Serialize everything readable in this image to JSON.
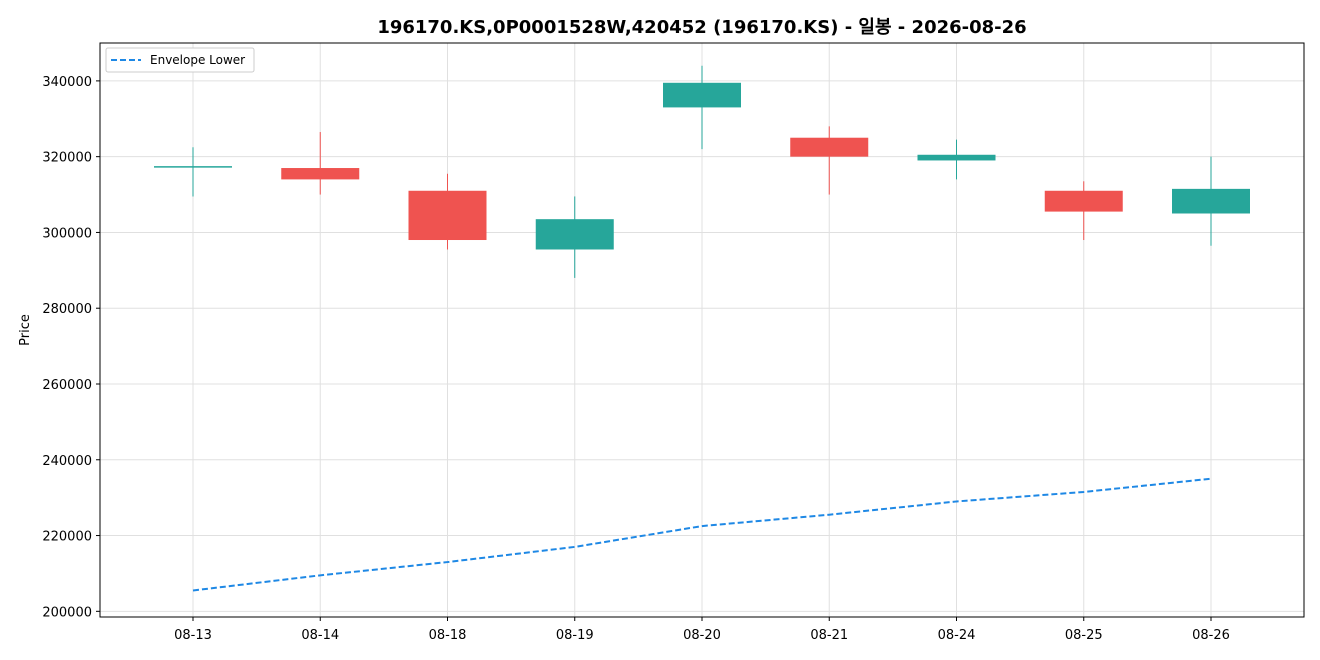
{
  "chart_data": {
    "type": "candlestick",
    "title": "196170.KS,0P0001528W,420452 (196170.KS) - 일봉 - 2026-08-26",
    "xlabel": "",
    "ylabel": "Price",
    "ylim": [
      198500,
      350000
    ],
    "yticks": [
      200000,
      220000,
      240000,
      260000,
      280000,
      300000,
      320000,
      340000
    ],
    "grid": true,
    "legend_position": "top-left",
    "categories": [
      "08-13",
      "08-14",
      "08-18",
      "08-19",
      "08-20",
      "08-21",
      "08-24",
      "08-25",
      "08-26"
    ],
    "ohlc": [
      {
        "open": 317500,
        "high": 322500,
        "low": 309500,
        "close": 317500
      },
      {
        "open": 317000,
        "high": 326500,
        "low": 310000,
        "close": 314000
      },
      {
        "open": 311000,
        "high": 315500,
        "low": 295500,
        "close": 298000
      },
      {
        "open": 295500,
        "high": 309500,
        "low": 288000,
        "close": 303500
      },
      {
        "open": 333000,
        "high": 344000,
        "low": 322000,
        "close": 339500
      },
      {
        "open": 325000,
        "high": 328000,
        "low": 310000,
        "close": 320000
      },
      {
        "open": 319000,
        "high": 324500,
        "low": 314000,
        "close": 320500
      },
      {
        "open": 311000,
        "high": 313500,
        "low": 298000,
        "close": 305500
      },
      {
        "open": 305000,
        "high": 320000,
        "low": 296500,
        "close": 311500
      }
    ],
    "series": [
      {
        "name": "Envelope Lower",
        "values": [
          205500,
          209500,
          213000,
          217000,
          222500,
          225500,
          229000,
          231500,
          235000
        ],
        "color": "#1e88e5",
        "style": "dashed"
      }
    ],
    "colors": {
      "up": "#26a69a",
      "down": "#ef5350",
      "grid": "#e0e0e0"
    }
  }
}
